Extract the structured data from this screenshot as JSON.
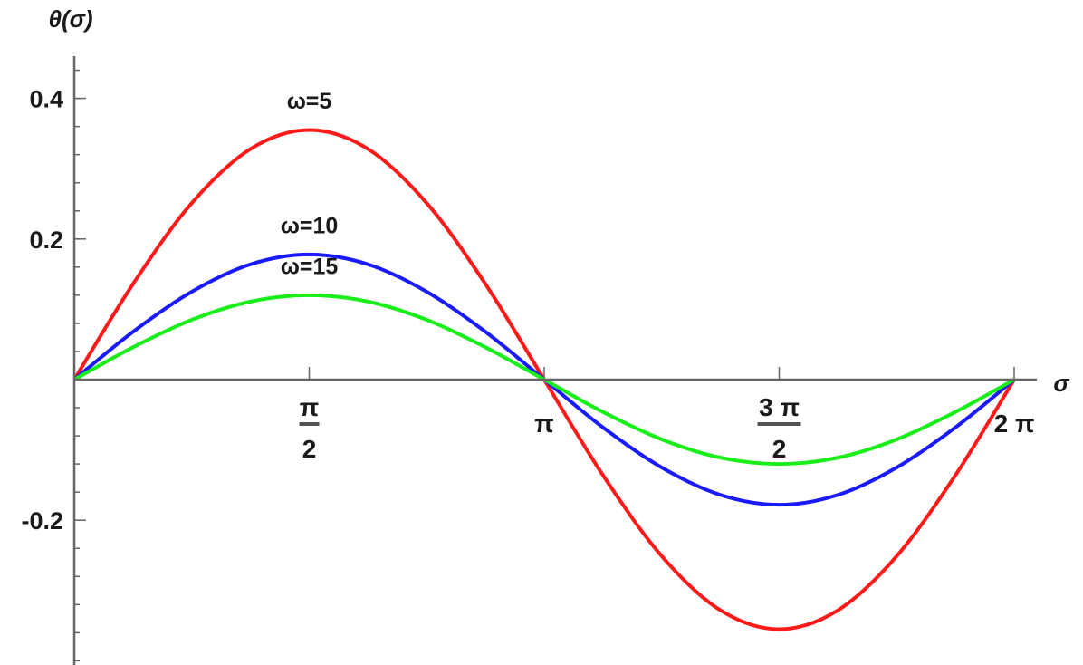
{
  "chart_data": {
    "type": "line",
    "title": "",
    "xlabel": "σ",
    "ylabel": "θ(σ)",
    "xlim": [
      0,
      6.2832
    ],
    "ylim": [
      -0.4,
      0.45
    ],
    "x_ticks": [
      {
        "value": 1.5708,
        "num": "π",
        "den": "2"
      },
      {
        "value": 3.1416,
        "num": "π",
        "den": ""
      },
      {
        "value": 4.7124,
        "num": "3 π",
        "den": "2"
      },
      {
        "value": 6.2832,
        "num": "2 π",
        "den": ""
      }
    ],
    "y_ticks": [
      {
        "value": 0.4,
        "label": "0.4"
      },
      {
        "value": 0.2,
        "label": "0.2"
      },
      {
        "value": -0.2,
        "label": "-0.2"
      }
    ],
    "y_minor_step": 0.04,
    "x": [
      0,
      0.3927,
      0.7854,
      1.1781,
      1.5708,
      1.9635,
      2.3562,
      2.7489,
      3.1416,
      3.5343,
      3.927,
      4.3197,
      4.7124,
      5.1051,
      5.4978,
      5.8905,
      6.2832
    ],
    "series": [
      {
        "name": "ω=5",
        "color": "#ff1a1a",
        "values": [
          0,
          0.136,
          0.251,
          0.328,
          0.355,
          0.328,
          0.251,
          0.136,
          0,
          -0.136,
          -0.251,
          -0.328,
          -0.355,
          -0.328,
          -0.251,
          -0.136,
          0
        ]
      },
      {
        "name": "ω=10",
        "color": "#1a1aff",
        "values": [
          0,
          0.068,
          0.125,
          0.164,
          0.178,
          0.164,
          0.125,
          0.068,
          0,
          -0.068,
          -0.125,
          -0.164,
          -0.178,
          -0.164,
          -0.125,
          -0.068,
          0
        ]
      },
      {
        "name": "ω=15",
        "color": "#1aee1a",
        "values": [
          0,
          0.046,
          0.085,
          0.111,
          0.12,
          0.111,
          0.085,
          0.046,
          0,
          -0.046,
          -0.085,
          -0.111,
          -0.12,
          -0.111,
          -0.085,
          -0.046,
          0
        ]
      }
    ],
    "annotations": [
      {
        "text": "ω=5",
        "x": 1.5708,
        "y": 0.385
      },
      {
        "text": "ω=10",
        "x": 1.5708,
        "y": 0.208
      },
      {
        "text": "ω=15",
        "x": 1.5708,
        "y": 0.15
      }
    ],
    "grid": false,
    "legend": "none"
  }
}
